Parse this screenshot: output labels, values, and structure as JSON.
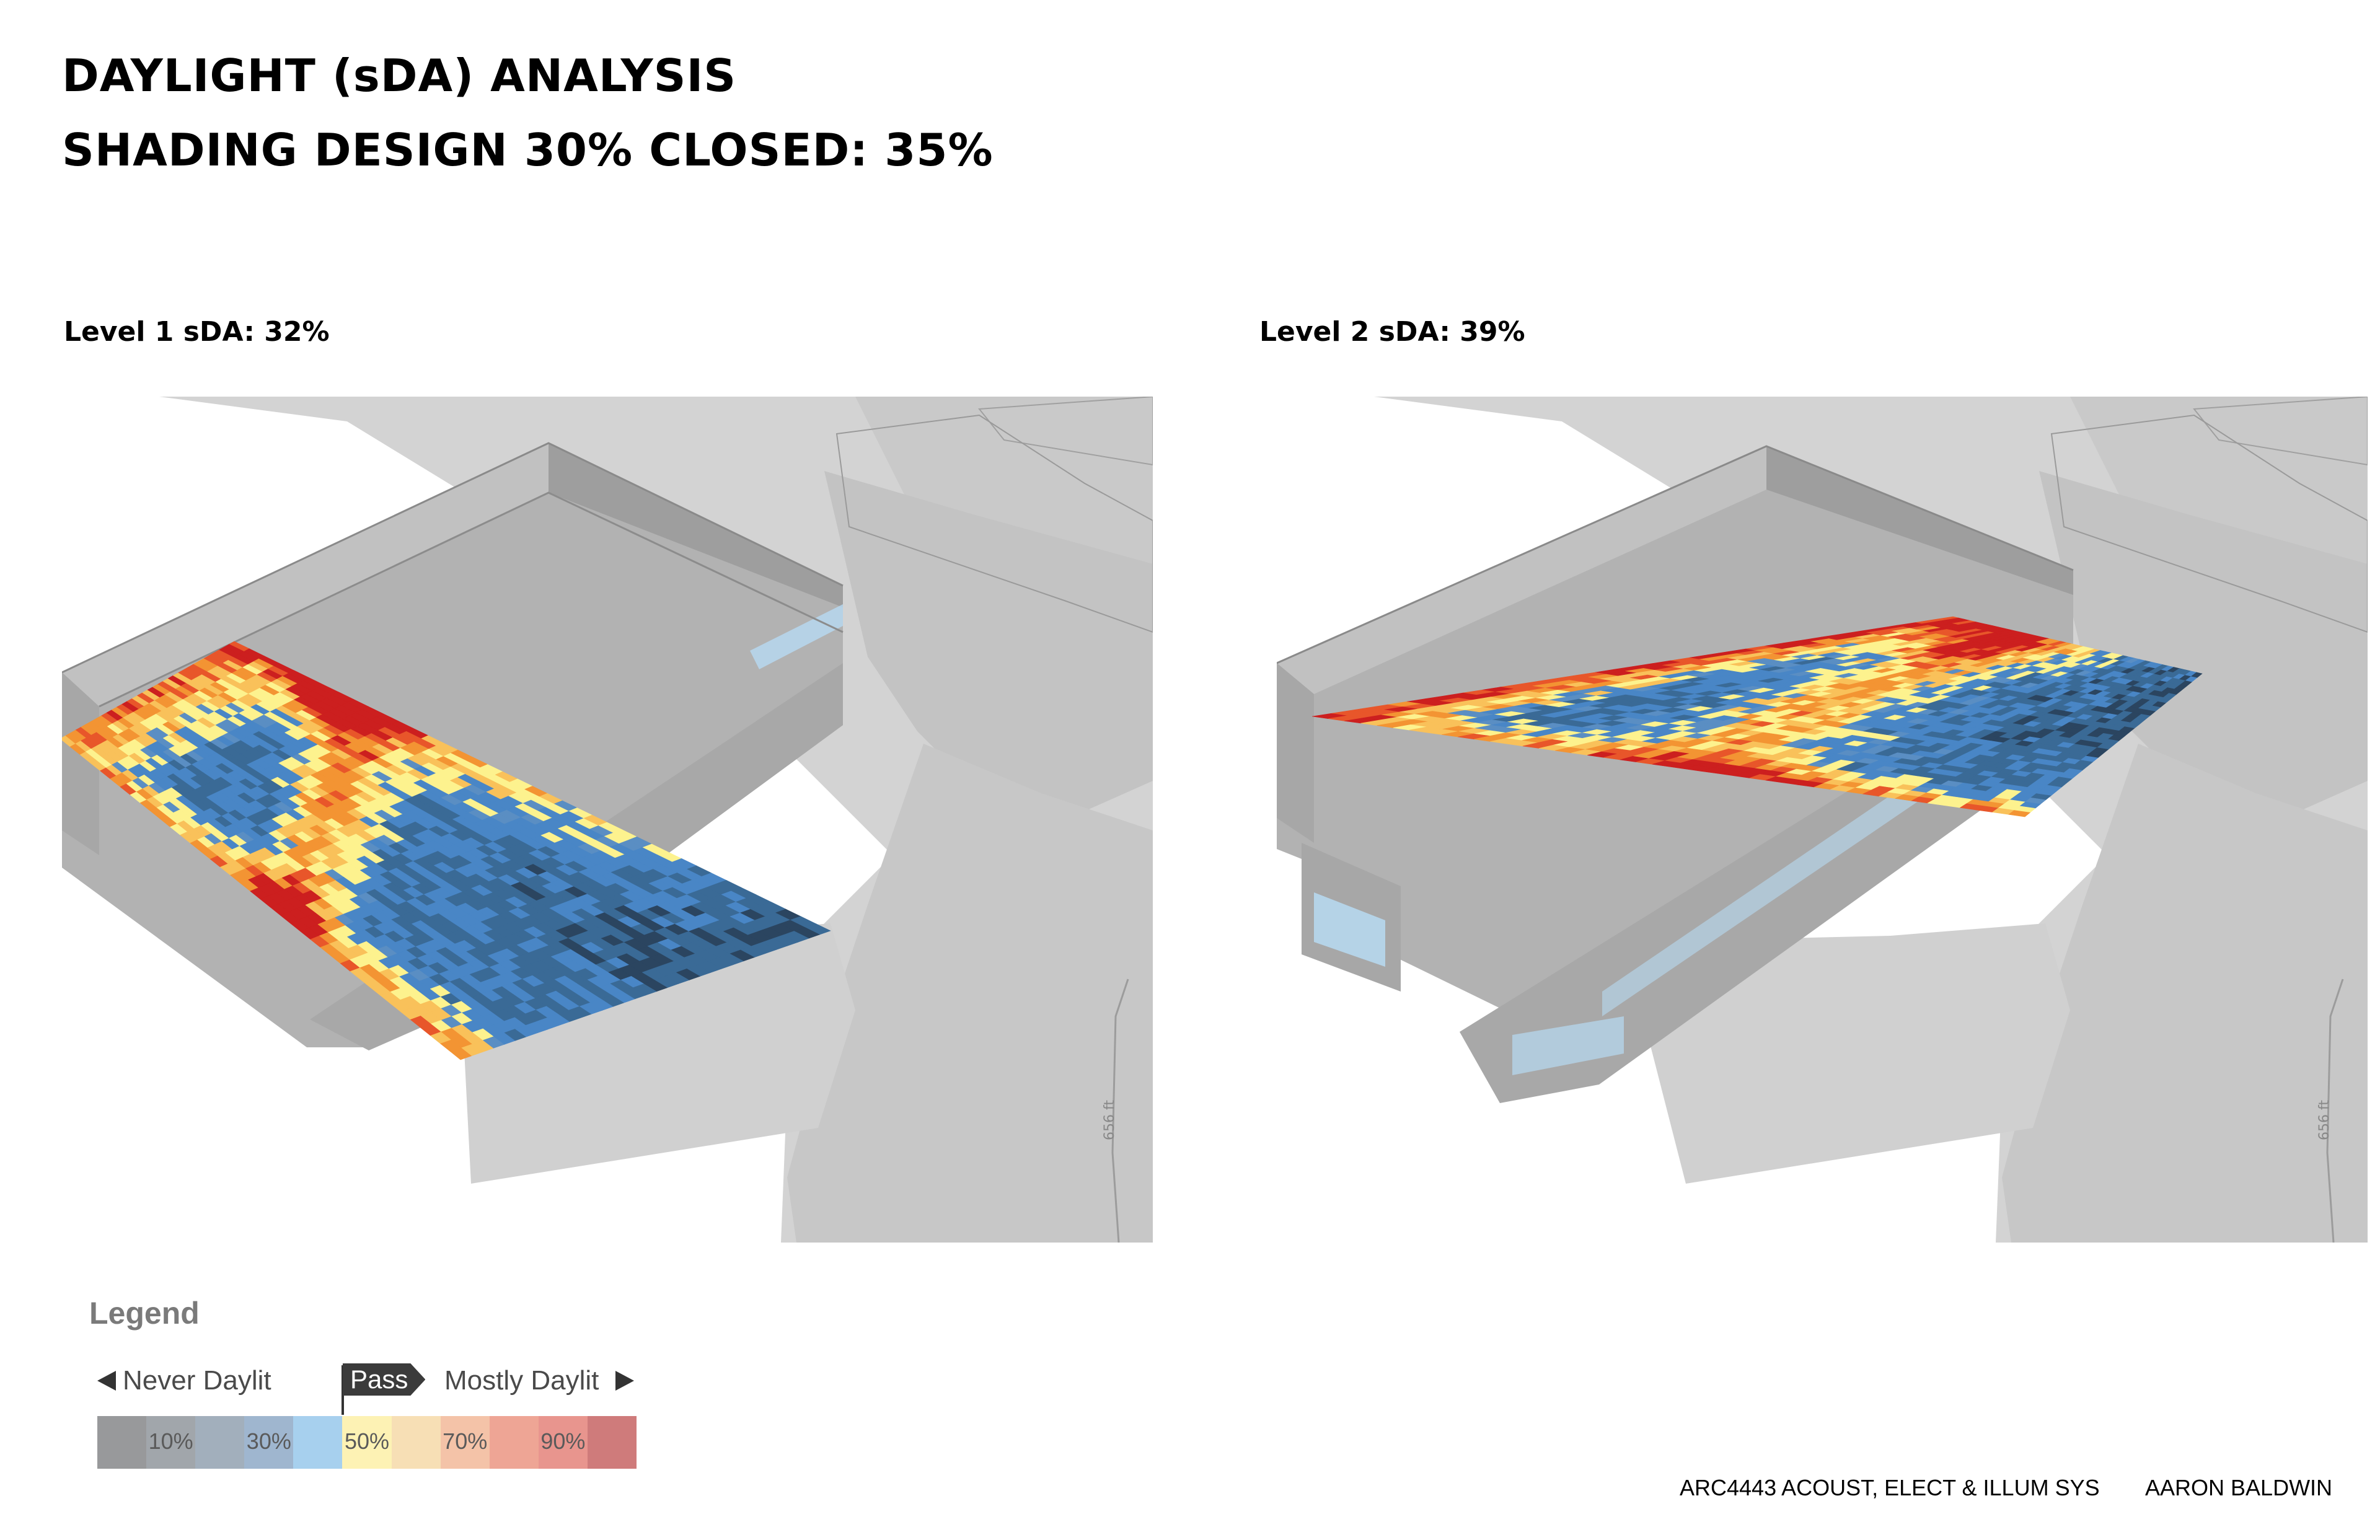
{
  "title_line1": "DAYLIGHT (sDA) ANALYSIS",
  "title_line2": "SHADING DESIGN 30% CLOSED: 35%",
  "levels": [
    {
      "label": "Level 1 sDA: 32%",
      "sda_percent": 32,
      "scale_text": "656 ft"
    },
    {
      "label": "Level 2 sDA: 39%",
      "sda_percent": 39,
      "scale_text": "656 ft"
    }
  ],
  "legend": {
    "title": "Legend",
    "never_daylit": "Never Daylit",
    "mostly_daylit": "Mostly Daylit",
    "pass": "Pass",
    "cells": [
      {
        "label": "",
        "color": "#98999b"
      },
      {
        "label": "10%",
        "color": "#a1a6ab"
      },
      {
        "label": "",
        "color": "#a2afbc"
      },
      {
        "label": "30%",
        "color": "#9fb6cf"
      },
      {
        "label": "",
        "color": "#a7d0ee"
      },
      {
        "label": "50%",
        "color": "#fdf2b4"
      },
      {
        "label": "",
        "color": "#f7dfb5"
      },
      {
        "label": "70%",
        "color": "#f4c3a8"
      },
      {
        "label": "",
        "color": "#eea595"
      },
      {
        "label": "90%",
        "color": "#e8958e"
      },
      {
        "label": "",
        "color": "#cf7b7b"
      }
    ]
  },
  "footer": {
    "course": "ARC4443 ACOUST, ELECT & ILLUM SYS",
    "author": "AARON BALDWIN"
  },
  "colors": {
    "heatmap": [
      "#2b4560",
      "#3a6a96",
      "#4986c6",
      "#5a8ec3",
      "#fdf28e",
      "#f9c15a",
      "#f39433",
      "#e8562a",
      "#cc1f1f"
    ]
  }
}
